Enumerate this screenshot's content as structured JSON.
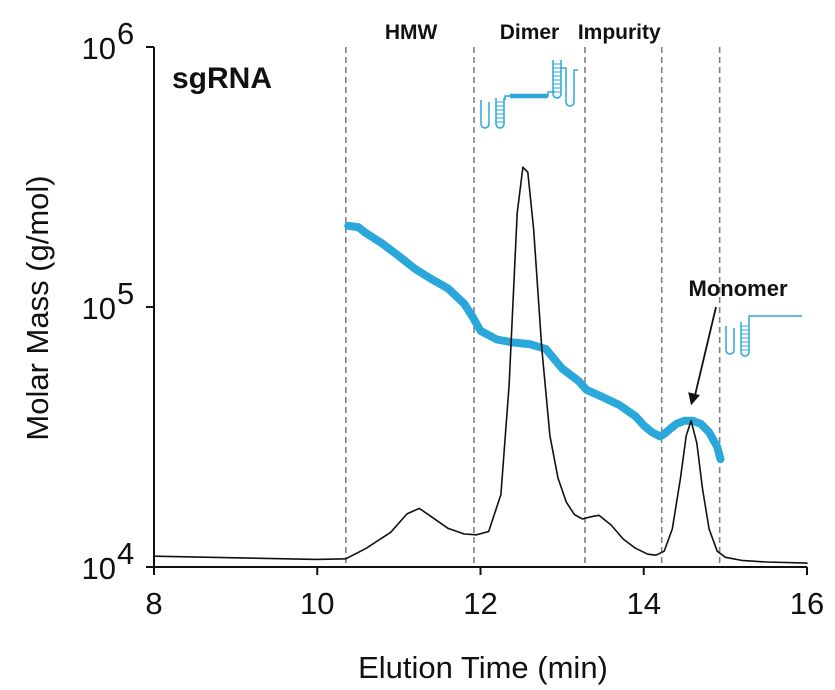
{
  "chart_data": {
    "type": "line",
    "panel_label": "sgRNA",
    "xlabel": "Elution Time (min)",
    "ylabel": "Molar Mass (g/mol)",
    "xlim": [
      8,
      16
    ],
    "ylim": [
      10000,
      1000000
    ],
    "yscale": "log",
    "x_ticks": [
      "8",
      "10",
      "12",
      "14",
      "16"
    ],
    "y_ticks": [
      {
        "base": "10",
        "exp": "4"
      },
      {
        "base": "10",
        "exp": "5"
      },
      {
        "base": "10",
        "exp": "6"
      }
    ],
    "grid": false,
    "region_dividers": [
      10.35,
      11.92,
      13.28,
      14.22,
      14.93
    ],
    "region_labels": [
      {
        "text": "HMW",
        "x": 11.15
      },
      {
        "text": "Dimer",
        "x": 12.6
      },
      {
        "text": "Impurity",
        "x": 13.7
      }
    ],
    "annotation": {
      "text": "Monomer",
      "target": [
        14.58,
        37000
      ]
    },
    "series": [
      {
        "role": "molar_mass",
        "color": "#2ba8db",
        "x": [
          10.38,
          10.5,
          10.6,
          10.8,
          11.0,
          11.2,
          11.4,
          11.6,
          11.8,
          11.9,
          12.0,
          12.2,
          12.4,
          12.6,
          12.8,
          13.0,
          13.2,
          13.3,
          13.5,
          13.7,
          13.9,
          14.0,
          14.1,
          14.2,
          14.25,
          14.3,
          14.4,
          14.5,
          14.6,
          14.7,
          14.8,
          14.9,
          14.94
        ],
        "y": [
          205000,
          203000,
          192000,
          175000,
          157000,
          140000,
          128000,
          118000,
          103000,
          92000,
          81000,
          75000,
          73000,
          72000,
          69000,
          58000,
          52000,
          48000,
          45000,
          42000,
          38000,
          35000,
          33000,
          31800,
          32500,
          33500,
          35500,
          36500,
          36500,
          35500,
          33000,
          29000,
          26000
        ]
      },
      {
        "role": "signal",
        "color": "#111111",
        "x": [
          8.0,
          9.0,
          10.0,
          10.35,
          10.6,
          10.9,
          11.1,
          11.25,
          11.4,
          11.6,
          11.8,
          11.95,
          12.1,
          12.25,
          12.35,
          12.45,
          12.52,
          12.58,
          12.65,
          12.75,
          12.85,
          12.95,
          13.05,
          13.15,
          13.25,
          13.35,
          13.45,
          13.6,
          13.75,
          13.9,
          14.05,
          14.15,
          14.25,
          14.35,
          14.45,
          14.52,
          14.58,
          14.65,
          14.72,
          14.8,
          14.9,
          15.0,
          15.2,
          15.5,
          16.0
        ],
        "y": [
          11000,
          10850,
          10700,
          10750,
          11800,
          13600,
          16000,
          16800,
          15600,
          14100,
          13400,
          13300,
          13700,
          19000,
          50000,
          230000,
          345000,
          330000,
          200000,
          70000,
          32000,
          22000,
          17800,
          15900,
          15300,
          15600,
          15800,
          14500,
          12800,
          11800,
          11200,
          11100,
          11500,
          14000,
          22000,
          32000,
          36500,
          30000,
          20000,
          14000,
          11500,
          10900,
          10600,
          10450,
          10350
        ]
      }
    ]
  }
}
